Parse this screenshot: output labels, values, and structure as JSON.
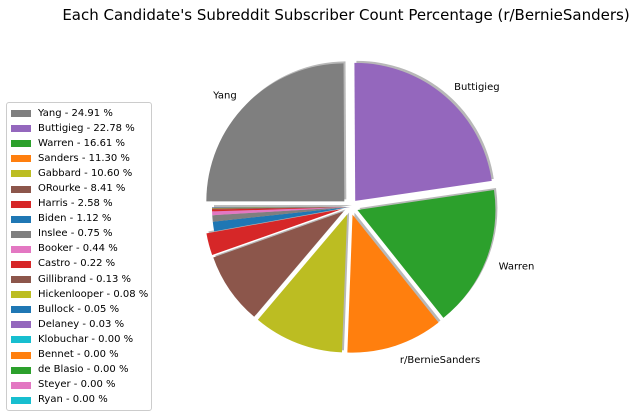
{
  "chart_data": {
    "type": "pie",
    "title": "Each Candidate's Subreddit Subscriber Count Percentage (r/BernieSanders)",
    "slices": [
      {
        "name": "Yang",
        "value": 24.91,
        "color": "#7f7f7f",
        "label": "Yang",
        "legend": "Yang - 24.91 %",
        "exploded": true
      },
      {
        "name": "Buttigieg",
        "value": 22.78,
        "color": "#9467bd",
        "label": "Buttigieg",
        "legend": "Buttigieg - 22.78 %",
        "exploded": true
      },
      {
        "name": "Warren",
        "value": 16.61,
        "color": "#2ca02c",
        "label": "Warren",
        "legend": "Warren - 16.61 %",
        "exploded": true
      },
      {
        "name": "Sanders",
        "value": 11.3,
        "color": "#ff7f0e",
        "label": "r/BernieSanders",
        "legend": "Sanders - 11.30 %",
        "exploded": true
      },
      {
        "name": "Gabbard",
        "value": 10.6,
        "color": "#bcbd22",
        "label": "",
        "legend": "Gabbard - 10.60 %",
        "exploded": true
      },
      {
        "name": "ORourke",
        "value": 8.41,
        "color": "#8c564b",
        "label": "",
        "legend": "ORourke - 8.41 %",
        "exploded": true
      },
      {
        "name": "Harris",
        "value": 2.58,
        "color": "#d62728",
        "label": "",
        "legend": "Harris - 2.58 %",
        "exploded": true
      },
      {
        "name": "Biden",
        "value": 1.12,
        "color": "#1f77b4",
        "label": "",
        "legend": "Biden - 1.12 %",
        "exploded": false
      },
      {
        "name": "Inslee",
        "value": 0.75,
        "color": "#7f7f7f",
        "label": "",
        "legend": "Inslee - 0.75 %",
        "exploded": false
      },
      {
        "name": "Booker",
        "value": 0.44,
        "color": "#e377c2",
        "label": "",
        "legend": "Booker - 0.44 %",
        "exploded": false
      },
      {
        "name": "Castro",
        "value": 0.22,
        "color": "#d62728",
        "label": "",
        "legend": "Castro - 0.22 %",
        "exploded": false
      },
      {
        "name": "Gillibrand",
        "value": 0.13,
        "color": "#8c564b",
        "label": "",
        "legend": "Gillibrand - 0.13 %",
        "exploded": false
      },
      {
        "name": "Hickenlooper",
        "value": 0.08,
        "color": "#bcbd22",
        "label": "",
        "legend": "Hickenlooper - 0.08 %",
        "exploded": false
      },
      {
        "name": "Bullock",
        "value": 0.05,
        "color": "#1f77b4",
        "label": "",
        "legend": "Bullock - 0.05 %",
        "exploded": false
      },
      {
        "name": "Delaney",
        "value": 0.03,
        "color": "#9467bd",
        "label": "",
        "legend": "Delaney - 0.03 %",
        "exploded": false
      },
      {
        "name": "Klobuchar",
        "value": 0.0,
        "color": "#17becf",
        "label": "",
        "legend": "Klobuchar - 0.00 %",
        "exploded": false
      },
      {
        "name": "Bennet",
        "value": 0.0,
        "color": "#ff7f0e",
        "label": "",
        "legend": "Bennet - 0.00 %",
        "exploded": false
      },
      {
        "name": "de Blasio",
        "value": 0.0,
        "color": "#2ca02c",
        "label": "",
        "legend": "de Blasio - 0.00 %",
        "exploded": false
      },
      {
        "name": "Steyer",
        "value": 0.0,
        "color": "#e377c2",
        "label": "",
        "legend": "Steyer - 0.00 %",
        "exploded": false
      },
      {
        "name": "Ryan",
        "value": 0.0,
        "color": "#17becf",
        "label": "",
        "legend": "Ryan - 0.00 %",
        "exploded": false
      }
    ],
    "legend_position": "left"
  }
}
